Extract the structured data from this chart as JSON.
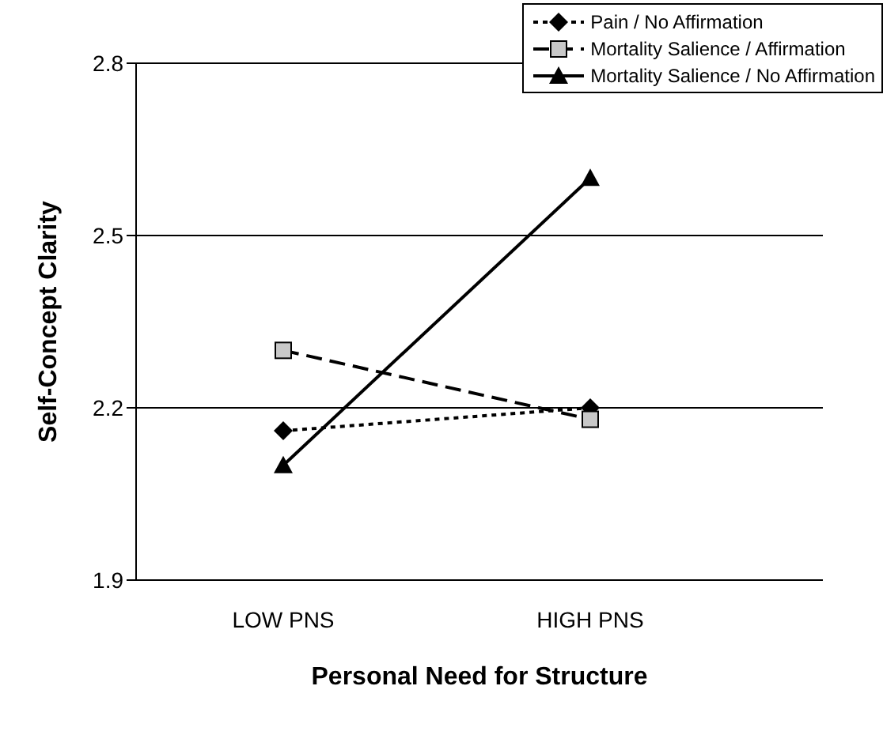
{
  "chart_data": {
    "type": "line",
    "xlabel": "Personal Need for Structure",
    "ylabel": "Self-Concept Clarity",
    "categories": [
      "LOW PNS",
      "HIGH PNS"
    ],
    "series": [
      {
        "name": "Pain / No Affirmation",
        "color": "#000000",
        "values": [
          2.16,
          2.2
        ],
        "marker": "diamond",
        "line_style": "dotted"
      },
      {
        "name": "Mortality Salience / Affirmation",
        "color": "#000000",
        "values": [
          2.3,
          2.18
        ],
        "marker": "square",
        "line_style": "dashed"
      },
      {
        "name": "Mortality Salience / No Affirmation",
        "color": "#000000",
        "values": [
          2.1,
          2.6
        ],
        "marker": "triangle",
        "line_style": "solid"
      }
    ],
    "ylim": [
      1.9,
      2.8
    ],
    "yticks": [
      1.9,
      2.2,
      2.5,
      2.8
    ],
    "grid": "y",
    "legend": "top right"
  }
}
